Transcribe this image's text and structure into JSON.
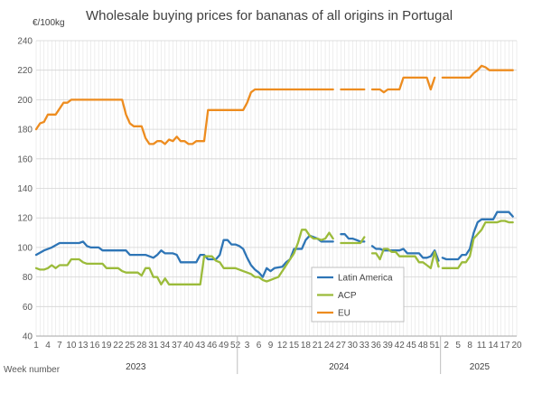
{
  "chart_data": {
    "type": "line",
    "title": "Wholesale buying prices for bananas of all origins in Portugal",
    "ylabel": "€/100kg",
    "xlabel": "Week number",
    "ylim": [
      40,
      240
    ],
    "yticks": [
      40,
      60,
      80,
      100,
      120,
      140,
      160,
      180,
      200,
      220,
      240
    ],
    "grid": true,
    "legend_position": "center-bottom",
    "x_tick_labels": [
      "1",
      "4",
      "7",
      "10",
      "13",
      "16",
      "19",
      "22",
      "25",
      "28",
      "31",
      "34",
      "37",
      "40",
      "43",
      "46",
      "49",
      "52",
      "3",
      "6",
      "9",
      "12",
      "15",
      "18",
      "21",
      "24",
      "27",
      "30",
      "33",
      "36",
      "39",
      "42",
      "45",
      "48",
      "51",
      "2",
      "5",
      "8",
      "11",
      "14",
      "17",
      "20"
    ],
    "years": [
      {
        "label": "2023",
        "start_week": 1
      },
      {
        "label": "2024",
        "start_week": 53
      },
      {
        "label": "2025",
        "start_week": 105
      }
    ],
    "x_unit": "week index (1 = week 1 of 2023)",
    "series": [
      {
        "name": "Latin America",
        "color": "#2E75B6",
        "points": [
          [
            1,
            95
          ],
          [
            3,
            98
          ],
          [
            5,
            100
          ],
          [
            7,
            103
          ],
          [
            9,
            103
          ],
          [
            11,
            103
          ],
          [
            12,
            103
          ],
          [
            13,
            104
          ],
          [
            14,
            101
          ],
          [
            15,
            100
          ],
          [
            16,
            100
          ],
          [
            17,
            100
          ],
          [
            18,
            98
          ],
          [
            19,
            98
          ],
          [
            20,
            98
          ],
          [
            22,
            98
          ],
          [
            24,
            98
          ],
          [
            25,
            95
          ],
          [
            27,
            95
          ],
          [
            29,
            95
          ],
          [
            31,
            93
          ],
          [
            32,
            95
          ],
          [
            33,
            98
          ],
          [
            34,
            96
          ],
          [
            36,
            96
          ],
          [
            37,
            95
          ],
          [
            38,
            90
          ],
          [
            40,
            90
          ],
          [
            42,
            90
          ],
          [
            43,
            95
          ],
          [
            44,
            95
          ],
          [
            45,
            92
          ],
          [
            47,
            92
          ],
          [
            48,
            95
          ],
          [
            49,
            105
          ],
          [
            50,
            105
          ],
          [
            51,
            102
          ],
          [
            52,
            102
          ],
          [
            53,
            101
          ],
          [
            54,
            99
          ],
          [
            55,
            93
          ],
          [
            56,
            88
          ],
          [
            57,
            85
          ],
          [
            58,
            83
          ],
          [
            59,
            80
          ],
          [
            60,
            86
          ],
          [
            61,
            84
          ],
          [
            62,
            86
          ],
          [
            64,
            87
          ],
          [
            65,
            90
          ],
          [
            66,
            92
          ],
          [
            67,
            99
          ],
          [
            69,
            99
          ],
          [
            70,
            105
          ],
          [
            71,
            108
          ],
          [
            72,
            107
          ],
          [
            73,
            106
          ],
          [
            74,
            104
          ],
          [
            75,
            104
          ],
          [
            76,
            104
          ],
          [
            77,
            104
          ],
          [
            null,
            null
          ],
          [
            79,
            109
          ],
          [
            80,
            109
          ],
          [
            81,
            106
          ],
          [
            82,
            106
          ],
          [
            83,
            105
          ],
          [
            84,
            104
          ],
          [
            85,
            104
          ],
          [
            null,
            null
          ],
          [
            87,
            101
          ],
          [
            88,
            99
          ],
          [
            89,
            99
          ],
          [
            90,
            98
          ],
          [
            91,
            98
          ],
          [
            93,
            98
          ],
          [
            94,
            98
          ],
          [
            95,
            99
          ],
          [
            96,
            96
          ],
          [
            97,
            96
          ],
          [
            98,
            96
          ],
          [
            99,
            96
          ],
          [
            100,
            93
          ],
          [
            101,
            93
          ],
          [
            102,
            94
          ],
          [
            103,
            98
          ],
          [
            104,
            91
          ],
          [
            null,
            null
          ],
          [
            105,
            93
          ],
          [
            106,
            92
          ],
          [
            108,
            92
          ],
          [
            109,
            92
          ],
          [
            110,
            95
          ],
          [
            111,
            95
          ],
          [
            112,
            99
          ],
          [
            113,
            110
          ],
          [
            114,
            117
          ],
          [
            115,
            119
          ],
          [
            117,
            119
          ],
          [
            118,
            119
          ],
          [
            119,
            124
          ],
          [
            121,
            124
          ],
          [
            122,
            124
          ],
          [
            123,
            121
          ]
        ]
      },
      {
        "name": "ACP",
        "color": "#9BBB3A",
        "points": [
          [
            1,
            86
          ],
          [
            2,
            85
          ],
          [
            3,
            85
          ],
          [
            4,
            86
          ],
          [
            5,
            88
          ],
          [
            6,
            86
          ],
          [
            7,
            88
          ],
          [
            8,
            88
          ],
          [
            9,
            88
          ],
          [
            10,
            92
          ],
          [
            11,
            92
          ],
          [
            12,
            92
          ],
          [
            13,
            90
          ],
          [
            14,
            89
          ],
          [
            15,
            89
          ],
          [
            17,
            89
          ],
          [
            18,
            89
          ],
          [
            19,
            86
          ],
          [
            20,
            86
          ],
          [
            21,
            86
          ],
          [
            22,
            86
          ],
          [
            23,
            84
          ],
          [
            24,
            83
          ],
          [
            25,
            83
          ],
          [
            26,
            83
          ],
          [
            27,
            83
          ],
          [
            28,
            81
          ],
          [
            29,
            86
          ],
          [
            30,
            86
          ],
          [
            31,
            80
          ],
          [
            32,
            80
          ],
          [
            33,
            75
          ],
          [
            34,
            79
          ],
          [
            35,
            75
          ],
          [
            36,
            75
          ],
          [
            40,
            75
          ],
          [
            41,
            75
          ],
          [
            42,
            75
          ],
          [
            43,
            75
          ],
          [
            44,
            94
          ],
          [
            45,
            94
          ],
          [
            46,
            94
          ],
          [
            47,
            91
          ],
          [
            48,
            90
          ],
          [
            49,
            86
          ],
          [
            50,
            86
          ],
          [
            51,
            86
          ],
          [
            52,
            86
          ],
          [
            53,
            85
          ],
          [
            54,
            84
          ],
          [
            55,
            83
          ],
          [
            56,
            82
          ],
          [
            57,
            80
          ],
          [
            58,
            80
          ],
          [
            59,
            78
          ],
          [
            60,
            77
          ],
          [
            61,
            78
          ],
          [
            62,
            79
          ],
          [
            63,
            80
          ],
          [
            64,
            84
          ],
          [
            65,
            88
          ],
          [
            66,
            92
          ],
          [
            67,
            96
          ],
          [
            68,
            103
          ],
          [
            69,
            112
          ],
          [
            70,
            112
          ],
          [
            71,
            108
          ],
          [
            72,
            106
          ],
          [
            73,
            106
          ],
          [
            74,
            105
          ],
          [
            75,
            106
          ],
          [
            76,
            110
          ],
          [
            77,
            106
          ],
          [
            null,
            null
          ],
          [
            79,
            103
          ],
          [
            80,
            103
          ],
          [
            81,
            103
          ],
          [
            82,
            103
          ],
          [
            83,
            103
          ],
          [
            84,
            103
          ],
          [
            85,
            107
          ],
          [
            null,
            null
          ],
          [
            87,
            96
          ],
          [
            88,
            96
          ],
          [
            89,
            92
          ],
          [
            90,
            99
          ],
          [
            91,
            99
          ],
          [
            92,
            97
          ],
          [
            93,
            97
          ],
          [
            94,
            94
          ],
          [
            95,
            94
          ],
          [
            96,
            94
          ],
          [
            97,
            94
          ],
          [
            98,
            94
          ],
          [
            99,
            90
          ],
          [
            100,
            90
          ],
          [
            101,
            88
          ],
          [
            102,
            86
          ],
          [
            103,
            97
          ],
          [
            104,
            87
          ],
          [
            null,
            null
          ],
          [
            105,
            86
          ],
          [
            106,
            86
          ],
          [
            108,
            86
          ],
          [
            109,
            86
          ],
          [
            110,
            90
          ],
          [
            111,
            90
          ],
          [
            112,
            94
          ],
          [
            113,
            106
          ],
          [
            114,
            109
          ],
          [
            115,
            112
          ],
          [
            116,
            117
          ],
          [
            117,
            117
          ],
          [
            118,
            117
          ],
          [
            119,
            117
          ],
          [
            120,
            118
          ],
          [
            121,
            118
          ],
          [
            122,
            117
          ],
          [
            123,
            117
          ]
        ]
      },
      {
        "name": "EU",
        "color": "#ED8C1F",
        "points": [
          [
            1,
            180
          ],
          [
            2,
            184
          ],
          [
            3,
            185
          ],
          [
            4,
            190
          ],
          [
            5,
            190
          ],
          [
            6,
            190
          ],
          [
            7,
            194
          ],
          [
            8,
            198
          ],
          [
            9,
            198
          ],
          [
            10,
            200
          ],
          [
            11,
            200
          ],
          [
            14,
            200
          ],
          [
            18,
            200
          ],
          [
            22,
            200
          ],
          [
            23,
            200
          ],
          [
            24,
            190
          ],
          [
            25,
            184
          ],
          [
            26,
            182
          ],
          [
            27,
            182
          ],
          [
            28,
            182
          ],
          [
            29,
            174
          ],
          [
            30,
            170
          ],
          [
            31,
            170
          ],
          [
            32,
            172
          ],
          [
            33,
            172
          ],
          [
            34,
            170
          ],
          [
            35,
            173
          ],
          [
            36,
            172
          ],
          [
            37,
            175
          ],
          [
            38,
            172
          ],
          [
            39,
            172
          ],
          [
            40,
            170
          ],
          [
            41,
            170
          ],
          [
            42,
            172
          ],
          [
            43,
            172
          ],
          [
            44,
            172
          ],
          [
            45,
            193
          ],
          [
            46,
            193
          ],
          [
            50,
            193
          ],
          [
            52,
            193
          ],
          [
            53,
            193
          ],
          [
            54,
            193
          ],
          [
            55,
            198
          ],
          [
            56,
            205
          ],
          [
            57,
            207
          ],
          [
            60,
            207
          ],
          [
            65,
            207
          ],
          [
            70,
            207
          ],
          [
            75,
            207
          ],
          [
            77,
            207
          ],
          [
            null,
            null
          ],
          [
            79,
            207
          ],
          [
            80,
            207
          ],
          [
            82,
            207
          ],
          [
            84,
            207
          ],
          [
            85,
            207
          ],
          [
            null,
            null
          ],
          [
            87,
            207
          ],
          [
            88,
            207
          ],
          [
            89,
            207
          ],
          [
            90,
            205
          ],
          [
            91,
            207
          ],
          [
            93,
            207
          ],
          [
            94,
            207
          ],
          [
            95,
            215
          ],
          [
            97,
            215
          ],
          [
            99,
            215
          ],
          [
            100,
            215
          ],
          [
            101,
            215
          ],
          [
            102,
            207
          ],
          [
            103,
            215
          ],
          [
            null,
            null
          ],
          [
            105,
            215
          ],
          [
            106,
            215
          ],
          [
            108,
            215
          ],
          [
            110,
            215
          ],
          [
            111,
            215
          ],
          [
            112,
            215
          ],
          [
            113,
            218
          ],
          [
            114,
            220
          ],
          [
            115,
            223
          ],
          [
            116,
            222
          ],
          [
            117,
            220
          ],
          [
            118,
            220
          ],
          [
            120,
            220
          ],
          [
            121,
            220
          ],
          [
            122,
            220
          ],
          [
            123,
            220
          ]
        ]
      }
    ]
  }
}
